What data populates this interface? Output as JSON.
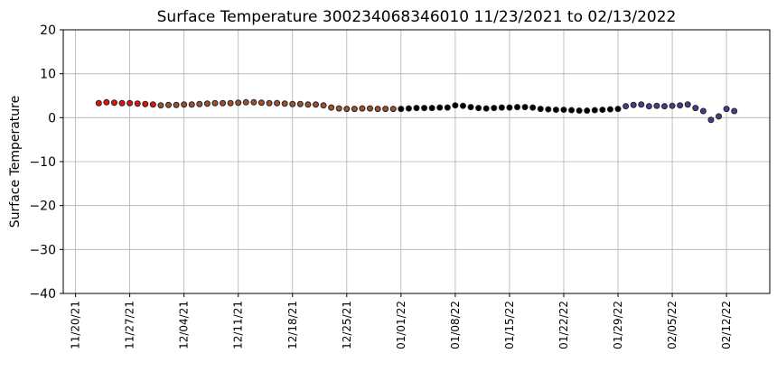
{
  "chart_data": {
    "type": "scatter",
    "title": "Surface Temperature 300234068346010  11/23/2021 to 02/13/2022",
    "y_label": "Surface Temperature",
    "xlim": [
      "2021-11-18T10:00",
      "2022-02-17T14:00"
    ],
    "xticks": [
      {
        "value": "2021-11-20",
        "label": "11/20/21"
      },
      {
        "value": "2021-11-27",
        "label": "11/27/21"
      },
      {
        "value": "2021-12-04",
        "label": "12/04/21"
      },
      {
        "value": "2021-12-11",
        "label": "12/11/21"
      },
      {
        "value": "2021-12-18",
        "label": "12/18/21"
      },
      {
        "value": "2021-12-25",
        "label": "12/25/21"
      },
      {
        "value": "2022-01-01",
        "label": "01/01/22"
      },
      {
        "value": "2022-01-08",
        "label": "01/08/22"
      },
      {
        "value": "2022-01-15",
        "label": "01/15/22"
      },
      {
        "value": "2022-01-22",
        "label": "01/22/22"
      },
      {
        "value": "2022-01-29",
        "label": "01/29/22"
      },
      {
        "value": "2022-02-05",
        "label": "02/05/22"
      },
      {
        "value": "2022-02-12",
        "label": "02/12/22"
      }
    ],
    "ylim": [
      -40,
      20
    ],
    "yticks": [
      {
        "value": -40,
        "label": "−40"
      },
      {
        "value": -30,
        "label": "−30"
      },
      {
        "value": -20,
        "label": "−20"
      },
      {
        "value": -10,
        "label": "−10"
      },
      0,
      10,
      20
    ],
    "grid": true,
    "series": [
      {
        "color": "#e8120c",
        "x": [
          "2021-11-23",
          "2021-11-24",
          "2021-11-25",
          "2021-11-26",
          "2021-11-27",
          "2021-11-28",
          "2021-11-29",
          "2021-11-30"
        ],
        "values": [
          3.3,
          3.5,
          3.4,
          3.3,
          3.3,
          3.2,
          3.1,
          3.0
        ]
      },
      {
        "color": "#a0522d",
        "x": [
          "2021-12-01",
          "2021-12-02",
          "2021-12-03",
          "2021-12-04",
          "2021-12-05",
          "2021-12-06",
          "2021-12-07",
          "2021-12-08",
          "2021-12-09",
          "2021-12-10",
          "2021-12-11",
          "2021-12-12",
          "2021-12-13",
          "2021-12-14",
          "2021-12-15",
          "2021-12-16",
          "2021-12-17",
          "2021-12-18",
          "2021-12-19",
          "2021-12-20",
          "2021-12-21",
          "2021-12-22",
          "2021-12-23",
          "2021-12-24",
          "2021-12-25",
          "2021-12-26",
          "2021-12-27",
          "2021-12-28",
          "2021-12-29",
          "2021-12-30",
          "2021-12-31"
        ],
        "values": [
          2.8,
          2.9,
          2.9,
          3.0,
          3.0,
          3.1,
          3.2,
          3.3,
          3.3,
          3.3,
          3.4,
          3.5,
          3.5,
          3.4,
          3.3,
          3.3,
          3.2,
          3.1,
          3.1,
          3.0,
          3.0,
          2.8,
          2.3,
          2.1,
          2.0,
          2.0,
          2.1,
          2.1,
          2.0,
          2.0,
          2.0
        ]
      },
      {
        "color": "#000000",
        "x": [
          "2022-01-01",
          "2022-01-02",
          "2022-01-03",
          "2022-01-04",
          "2022-01-05",
          "2022-01-06",
          "2022-01-07",
          "2022-01-08",
          "2022-01-09",
          "2022-01-10",
          "2022-01-11",
          "2022-01-12",
          "2022-01-13",
          "2022-01-14",
          "2022-01-15",
          "2022-01-16",
          "2022-01-17",
          "2022-01-18",
          "2022-01-19",
          "2022-01-20",
          "2022-01-21",
          "2022-01-22",
          "2022-01-23",
          "2022-01-24",
          "2022-01-25",
          "2022-01-26",
          "2022-01-27",
          "2022-01-28",
          "2022-01-29"
        ],
        "values": [
          2.0,
          2.1,
          2.2,
          2.2,
          2.2,
          2.3,
          2.3,
          2.8,
          2.7,
          2.4,
          2.2,
          2.1,
          2.2,
          2.3,
          2.3,
          2.4,
          2.4,
          2.3,
          2.0,
          1.9,
          1.8,
          1.8,
          1.7,
          1.6,
          1.6,
          1.7,
          1.8,
          1.9,
          2.0
        ]
      },
      {
        "color": "#483d8b",
        "x": [
          "2022-01-30",
          "2022-01-31",
          "2022-02-01",
          "2022-02-02",
          "2022-02-03",
          "2022-02-04",
          "2022-02-05",
          "2022-02-06",
          "2022-02-07",
          "2022-02-08",
          "2022-02-09",
          "2022-02-10",
          "2022-02-11",
          "2022-02-12",
          "2022-02-13"
        ],
        "values": [
          2.6,
          2.9,
          3.0,
          2.6,
          2.7,
          2.6,
          2.7,
          2.8,
          3.0,
          2.2,
          1.5,
          -0.5,
          0.3,
          2.0,
          1.5
        ]
      }
    ]
  }
}
